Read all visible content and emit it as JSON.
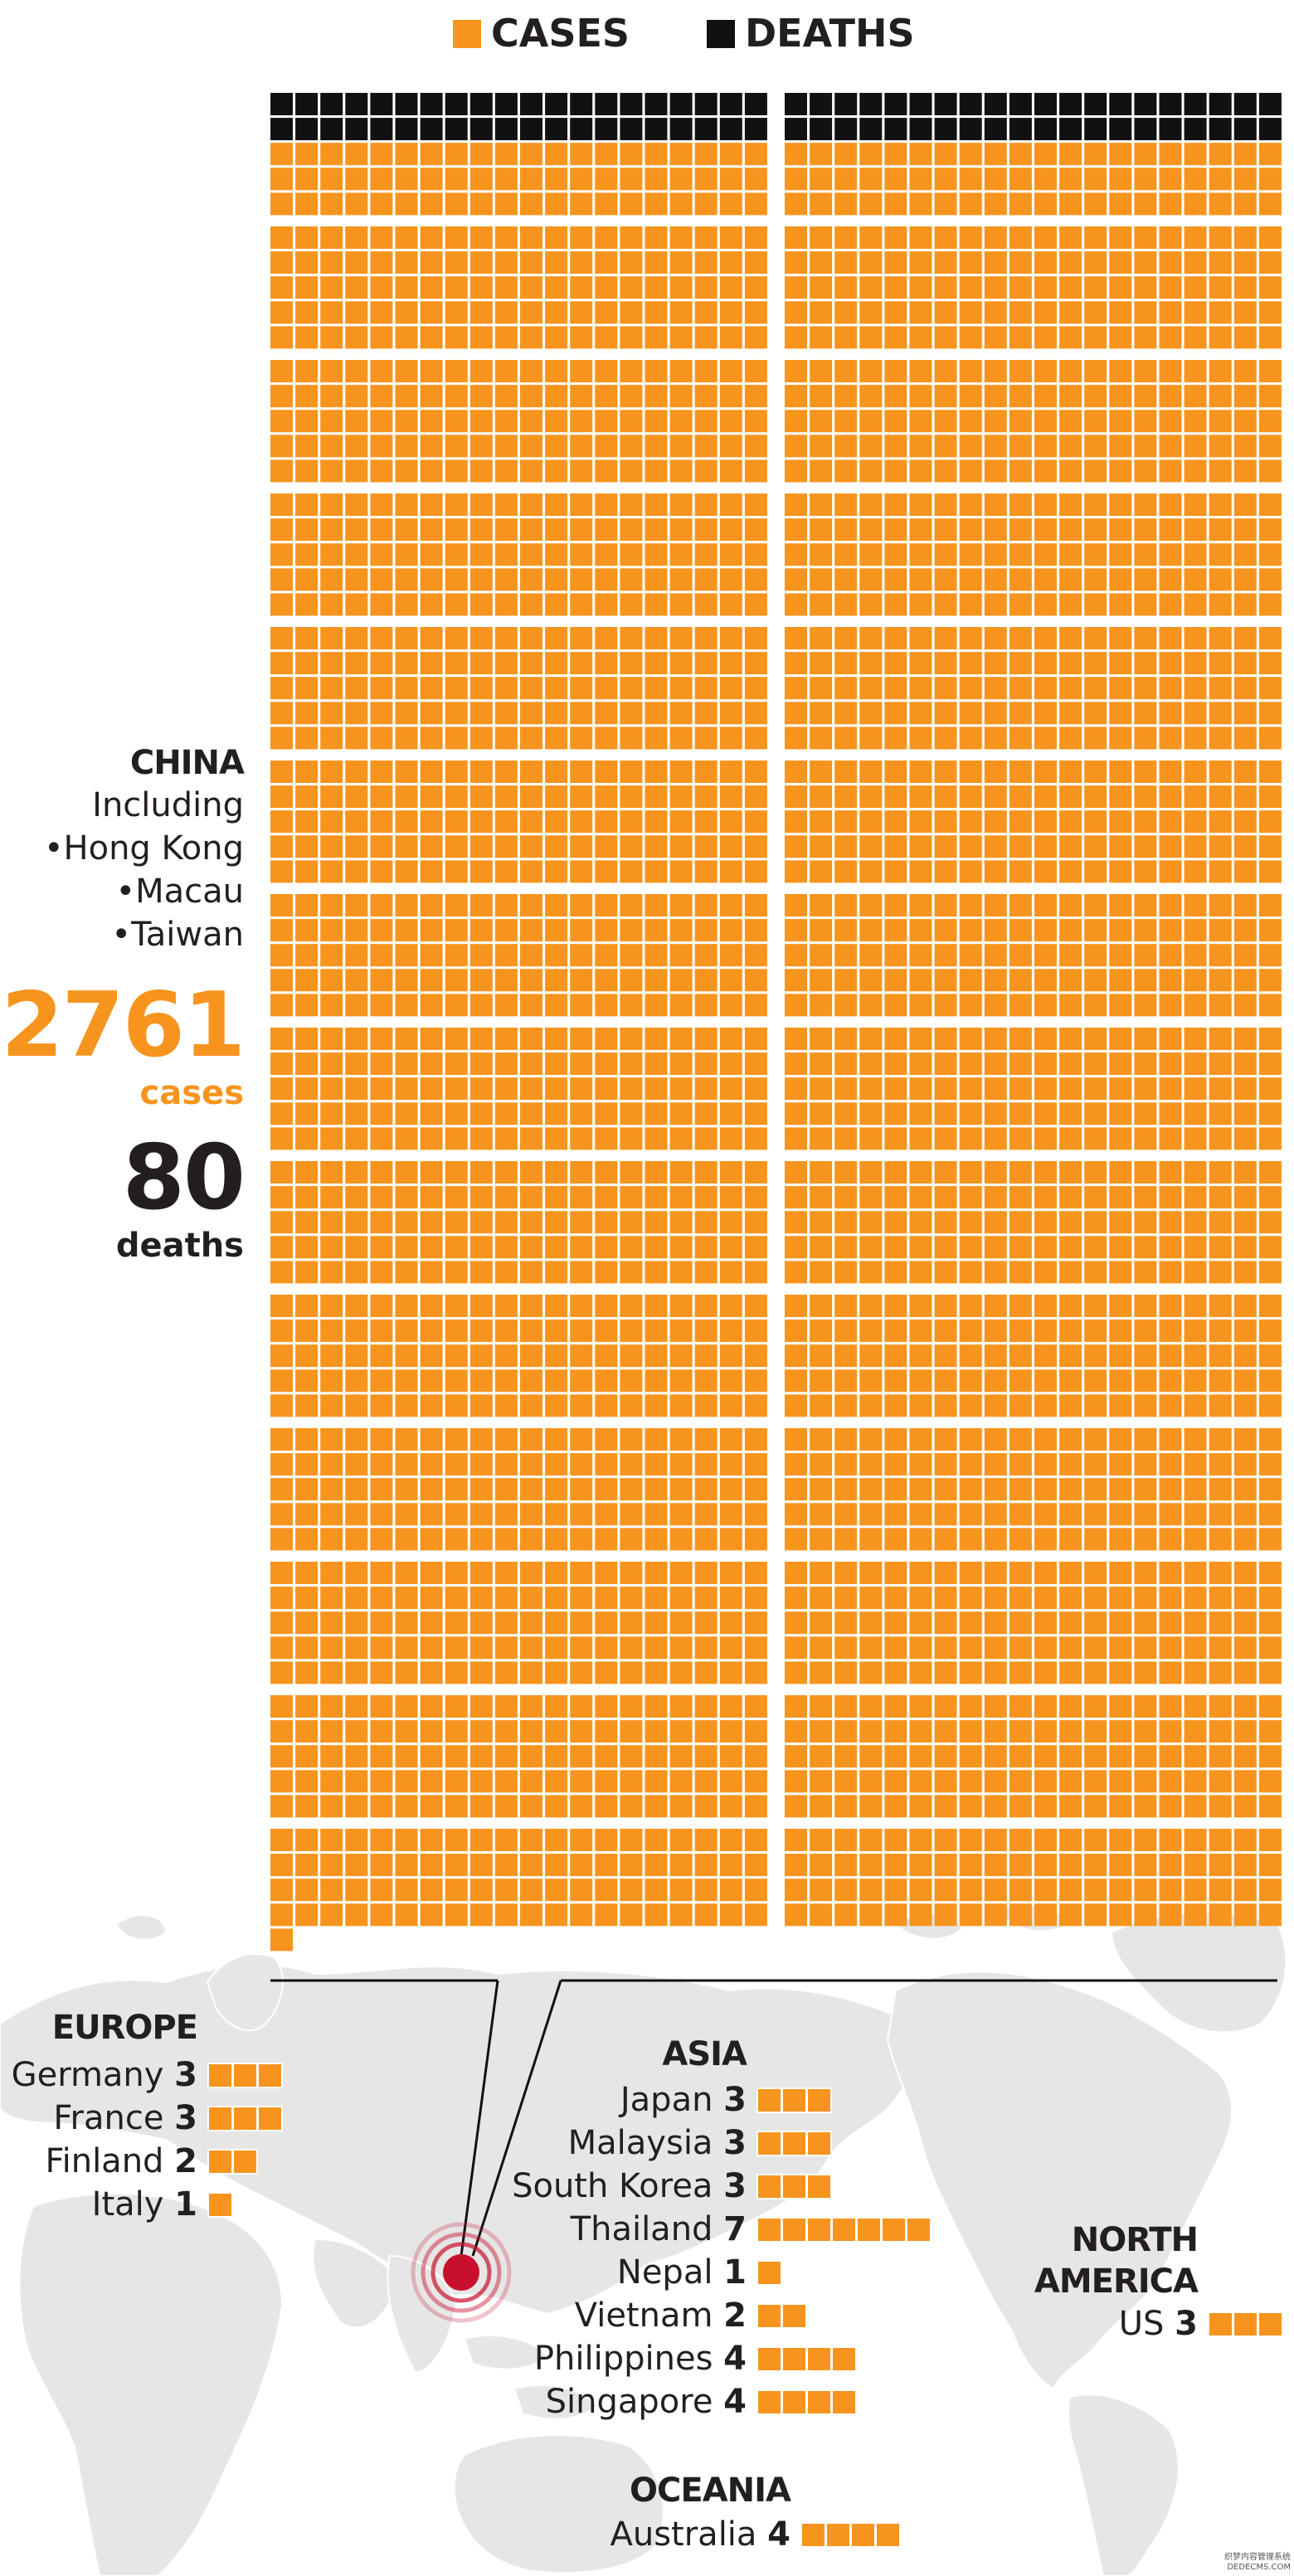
{
  "legend": {
    "cases_label": "CASES",
    "deaths_label": "DEATHS",
    "cases_color": "#f7941d",
    "deaths_color": "#111111"
  },
  "china": {
    "title": "CHINA",
    "including": "Including",
    "places": [
      "•Hong Kong",
      "•Macau",
      "•Taiwan"
    ],
    "cases": 2761,
    "cases_label": "cases",
    "deaths": 80,
    "deaths_label": "deaths"
  },
  "regions": [
    {
      "name": "EUROPE",
      "countries": [
        {
          "name": "Germany",
          "cases": 3
        },
        {
          "name": "France",
          "cases": 3
        },
        {
          "name": "Finland",
          "cases": 2
        },
        {
          "name": "Italy",
          "cases": 1
        }
      ]
    },
    {
      "name": "ASIA",
      "countries": [
        {
          "name": "Japan",
          "cases": 3
        },
        {
          "name": "Malaysia",
          "cases": 3
        },
        {
          "name": "South Korea",
          "cases": 3
        },
        {
          "name": "Thailand",
          "cases": 7
        },
        {
          "name": "Nepal",
          "cases": 1
        },
        {
          "name": "Vietnam",
          "cases": 2
        },
        {
          "name": "Philippines",
          "cases": 4
        },
        {
          "name": "Singapore",
          "cases": 4
        }
      ]
    },
    {
      "name": "NORTH AMERICA",
      "countries": [
        {
          "name": "US",
          "cases": 3
        }
      ]
    },
    {
      "name": "OCEANIA",
      "countries": [
        {
          "name": "Australia",
          "cases": 4
        }
      ]
    }
  ],
  "credit": {
    "line1": "织梦内容管理系统",
    "line2": "DEDECMS.COM"
  },
  "colors": {
    "cases": "#f7941d",
    "deaths": "#111111",
    "land": "#e6e6e6",
    "outbreak": "#c8102e"
  },
  "marker": {
    "icon": "outbreak-target-icon"
  }
}
